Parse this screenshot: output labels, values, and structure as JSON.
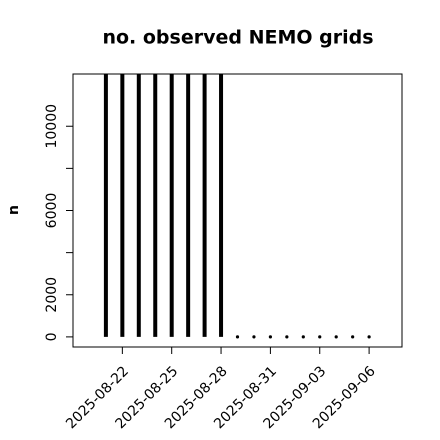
{
  "chart_data": {
    "type": "bar",
    "title": "no. observed NEMO grids",
    "y_label": "n",
    "x": [
      "2025-08-21",
      "2025-08-22",
      "2025-08-23",
      "2025-08-24",
      "2025-08-25",
      "2025-08-26",
      "2025-08-27",
      "2025-08-28",
      "2025-08-29",
      "2025-08-30",
      "2025-08-31",
      "2025-09-01",
      "2025-09-02",
      "2025-09-03",
      "2025-09-04",
      "2025-09-05",
      "2025-09-06"
    ],
    "values": [
      12480,
      12480,
      12480,
      12480,
      12480,
      12480,
      12480,
      12480,
      0,
      0,
      0,
      0,
      0,
      0,
      0,
      0,
      0
    ],
    "color": "#000000",
    "xlim": [
      "2025-08-19",
      "2025-09-08"
    ],
    "xticks": [
      "2025-08-22",
      "2025-08-25",
      "2025-08-28",
      "2025-08-31",
      "2025-09-03",
      "2025-09-06"
    ],
    "ylim": [
      -480,
      12480
    ],
    "yticks": [
      0,
      2000,
      {
        "value": 4000,
        "label": null
      },
      6000,
      {
        "value": 8000,
        "label": null
      },
      10000
    ]
  }
}
